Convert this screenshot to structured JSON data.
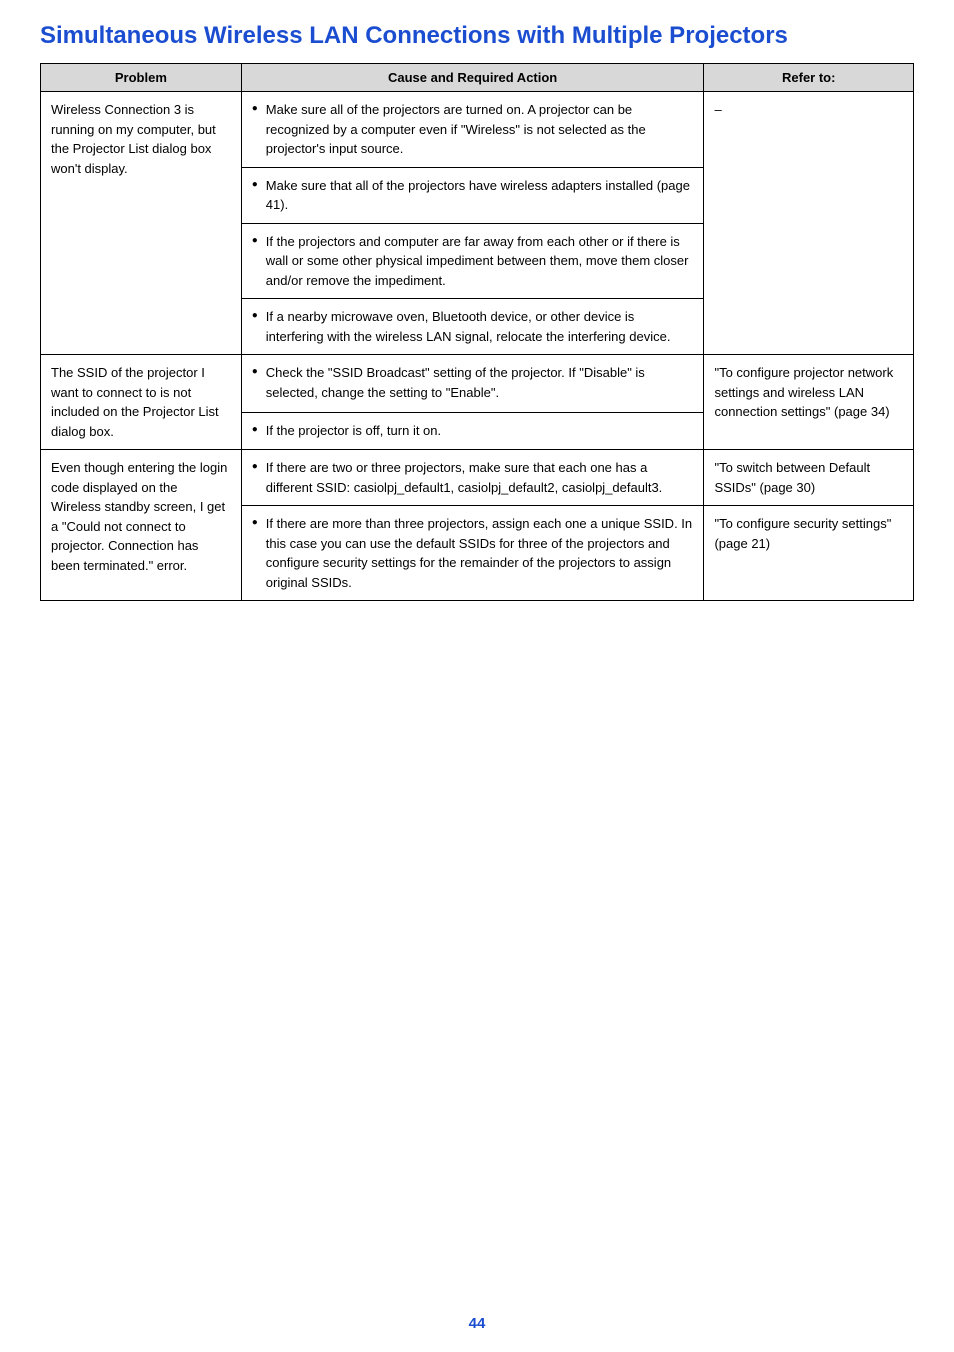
{
  "title": "Simultaneous Wireless LAN Connections with Multiple Projectors",
  "headers": {
    "problem": "Problem",
    "cause": "Cause and Required Action",
    "refer": "Refer to:"
  },
  "rows": [
    {
      "problem": "Wireless Connection 3 is running on my computer, but the Projector List dialog box won't display.",
      "cause_items": [
        "Make sure all of the projectors are turned on. A projector can be recognized by a computer even if \"Wireless\" is not selected as the projector's input source.",
        "Make sure that all of the projectors have wireless adapters installed (page 41).",
        "If the projectors and computer are far away from each other or if there is wall or some other physical impediment between them, move them closer and/or remove the impediment.",
        "If a nearby microwave oven, Bluetooth device, or other device is interfering with the wireless LAN signal, relocate the interfering device."
      ],
      "refer": "–"
    },
    {
      "problem": "The SSID of the projector I want to connect to is not included on the Projector List dialog box.",
      "cause_items": [
        "Check the \"SSID Broadcast\" setting of the projector. If \"Disable\" is selected, change the setting to \"Enable\".",
        "If the projector is off, turn it on."
      ],
      "refer": "\"To configure projector network settings and wireless LAN connection settings\" (page 34)"
    },
    {
      "problem": "Even though entering the login code displayed on the Wireless standby screen, I get a \"Could not connect to projector. Connection has been terminated.\" error.",
      "cause_items": [
        "If there are two or three projectors, make sure that each one has a different SSID: casiolpj_default1, casiolpj_default2, casiolpj_default3.",
        "If there are more than three projectors, assign each one a unique SSID. In this case you can use the default SSIDs for three of the projectors and configure security settings for the remainder of the projectors to assign original SSIDs."
      ],
      "refer_items": [
        "\"To switch between Default SSIDs\" (page 30)",
        "\"To configure security settings\" (page 21)"
      ]
    }
  ],
  "page_number": "44",
  "styling": {
    "title_color": "#1b4dd0",
    "header_bg": "#d8d8d8",
    "border_color": "#000000",
    "page_color": "#1b4dd0"
  }
}
